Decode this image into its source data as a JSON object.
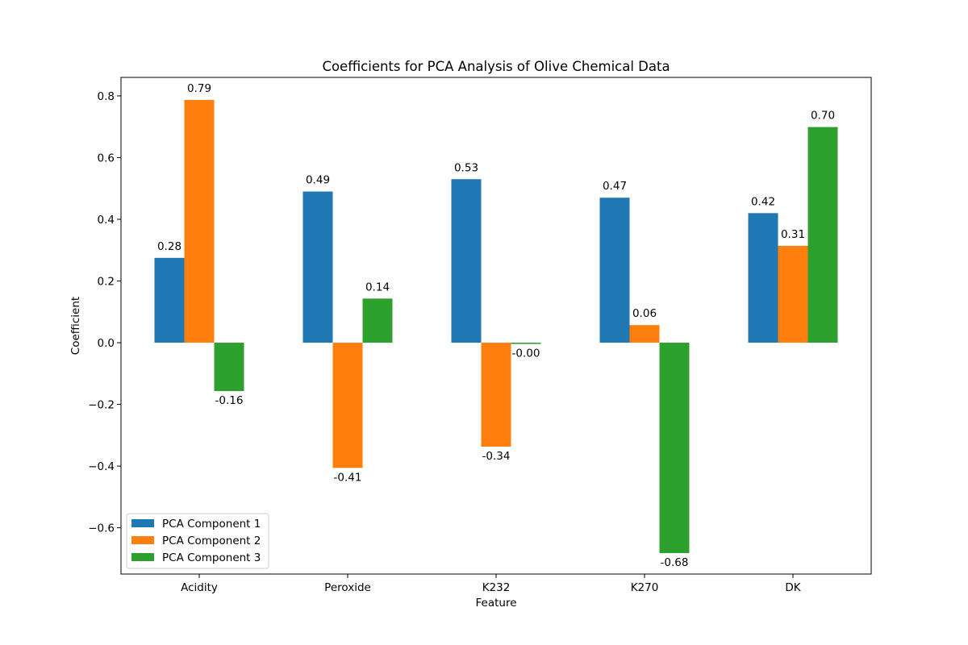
{
  "chart_data": {
    "type": "bar",
    "title": "Coefficients for PCA Analysis of Olive Chemical Data",
    "xlabel": "Feature",
    "ylabel": "Coefficient",
    "categories": [
      "Acidity",
      "Peroxide",
      "K232",
      "K270",
      "DK"
    ],
    "series": [
      {
        "name": "PCA Component 1",
        "color": "#1f77b4",
        "values": [
          0.275,
          0.49,
          0.53,
          0.47,
          0.42
        ],
        "labels": [
          "0.28",
          "0.49",
          "0.53",
          "0.47",
          "0.42"
        ]
      },
      {
        "name": "PCA Component 2",
        "color": "#ff7f0e",
        "values": [
          0.787,
          -0.406,
          -0.337,
          0.057,
          0.314
        ],
        "labels": [
          "0.79",
          "-0.41",
          "-0.34",
          "0.06",
          "0.31"
        ]
      },
      {
        "name": "PCA Component 3",
        "color": "#2ca02c",
        "values": [
          -0.157,
          0.143,
          -0.004,
          -0.682,
          0.699
        ],
        "labels": [
          "-0.16",
          "0.14",
          "-0.00",
          "-0.68",
          "0.70"
        ]
      }
    ],
    "ylim": [
      -0.75,
      0.86
    ],
    "yticks": [
      -0.6,
      -0.4,
      -0.2,
      0.0,
      0.2,
      0.4,
      0.6,
      0.8
    ],
    "ytick_labels": [
      "−0.6",
      "−0.4",
      "−0.2",
      "0.0",
      "0.2",
      "0.4",
      "0.6",
      "0.8"
    ],
    "grid": false,
    "legend_position": "lower-left"
  }
}
